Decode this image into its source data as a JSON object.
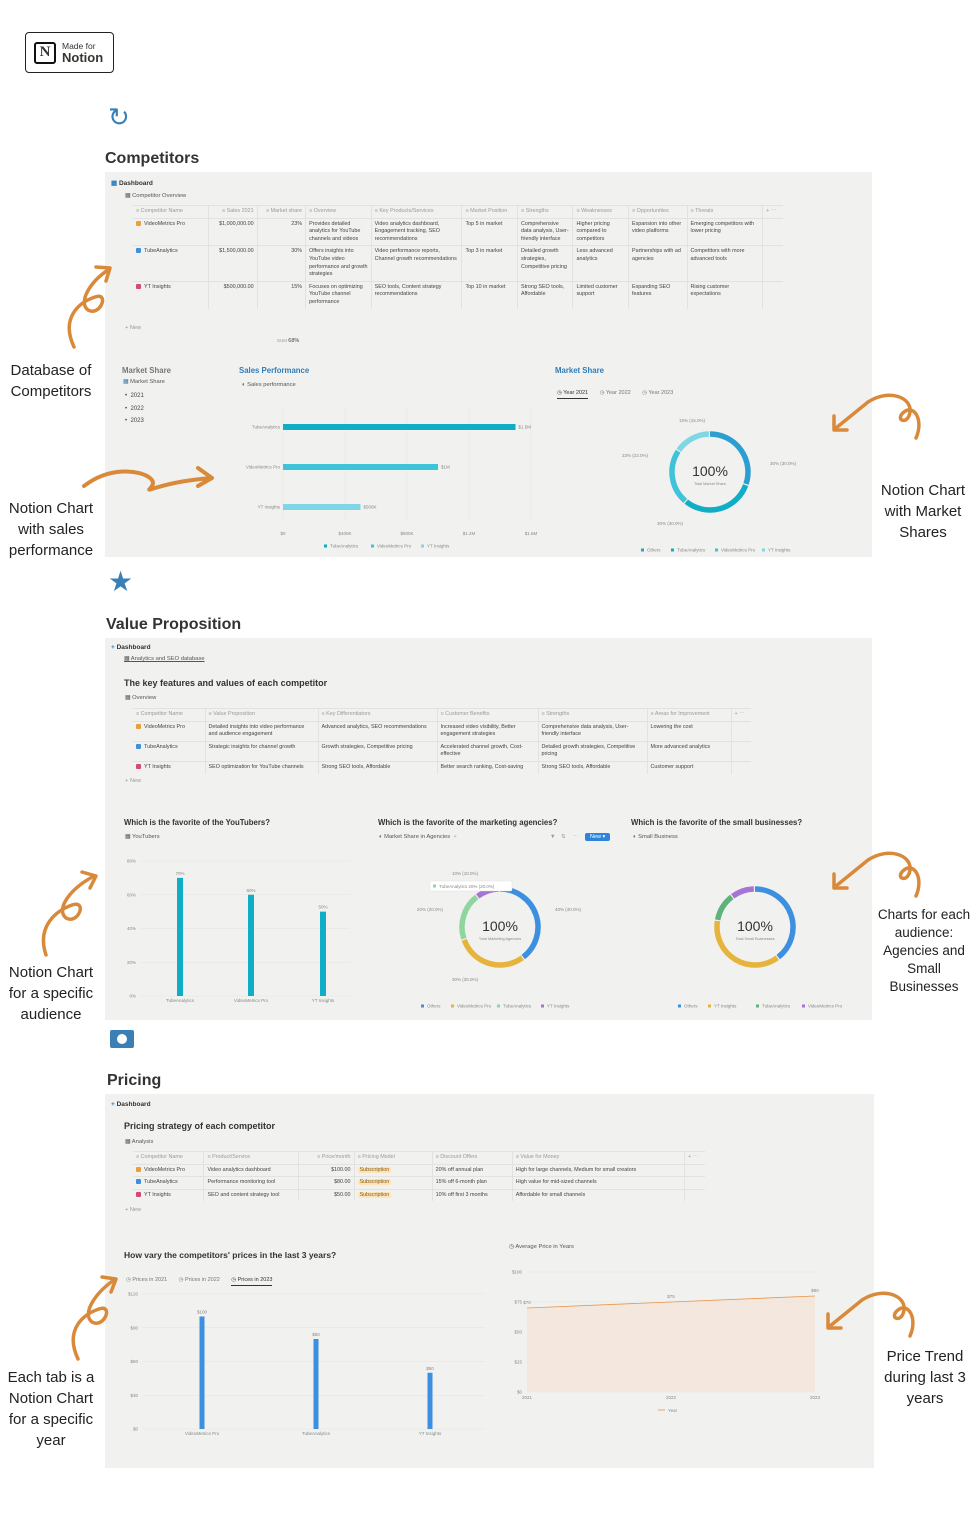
{
  "badge": {
    "small": "Made for",
    "big": "Notion"
  },
  "s1": {
    "title": "Competitors",
    "dashboard": "Dashboard",
    "db_title": "Competitor Overview",
    "cols": [
      "Competitor Name",
      "Sales 2021",
      "Market share",
      "Overview",
      "Key Products/Services",
      "Market Position",
      "Strengths",
      "Weaknesses",
      "Opportunities",
      "Threats"
    ],
    "rows": [
      [
        "VideoMetrics Pro",
        "$1,000,000.00",
        "23%",
        "Provides detailed analytics for YouTube channels and videos",
        "Video analytics dashboard, Engagement tracking, SEO recommendations",
        "Top 5 in market",
        "Comprehensive data analysis, User-friendly interface",
        "Higher pricing compared to competitors",
        "Expansion into other video platforms",
        "Emerging competitors with lower pricing"
      ],
      [
        "TubeAnalytics",
        "$1,500,000.00",
        "30%",
        "Offers insights into YouTube video performance and growth strategies",
        "Video performance reports, Channel growth recommendations",
        "Top 3 in market",
        "Detailed growth strategies, Competitive pricing",
        "Less advanced analytics",
        "Partnerships with ad agencies",
        "Competitors with more advanced tools"
      ],
      [
        "YT Insights",
        "$500,000.00",
        "15%",
        "Focuses on optimizing YouTube channel performance",
        "SEO tools, Content strategy recommendations",
        "Top 10 in market",
        "Strong SEO tools, Affordable",
        "Limited customer support",
        "Expanding SEO features",
        "Rising customer expectations"
      ]
    ],
    "new": "+ New",
    "sum_label": "SUM",
    "sum_value": "68%",
    "ms_group": "Market Share",
    "ms_db": "Market Share",
    "ms_items": [
      "2021",
      "2022",
      "2023"
    ],
    "sales_title": "Sales Performance",
    "sales_view": "Sales performance",
    "market_title": "Market Share",
    "market_tabs": [
      "Year 2021",
      "Year 2022",
      "Year 2023"
    ],
    "donut_center": "100%",
    "donut_sub": "Total Market Share",
    "donut_labels": [
      "15% (15.0%)",
      "23% (23.0%)",
      "30% (30.0%)",
      "30% (30.0%)"
    ]
  },
  "s2": {
    "title": "Value Proposition",
    "dashboard": "Dashboard",
    "db_link": "Analytics and SEO database",
    "subtitle": "The key features and values of each competitor",
    "view": "Overview",
    "cols": [
      "Competitor Name",
      "Value Proposition",
      "Key Differentiators",
      "Customer Benefits",
      "Strengths",
      "Areas for Improvement"
    ],
    "rows": [
      [
        "VideoMetrics Pro",
        "Detailed insights into video performance and audience engagement",
        "Advanced analytics, SEO recommendations",
        "Increased video visibility, Better engagement strategies",
        "Comprehensive data analysis, User-friendly interface",
        "Lowering the cost"
      ],
      [
        "TubeAnalytics",
        "Strategic insights for channel growth",
        "Growth strategies, Competitive pricing",
        "Accelerated channel growth, Cost-effective",
        "Detailed growth strategies, Competitive pricing",
        "More advanced analytics"
      ],
      [
        "YT Insights",
        "SEO optimization for YouTube channels",
        "Strong SEO tools, Affordable",
        "Better search ranking, Cost-saving",
        "Strong SEO tools, Affordable",
        "Customer support"
      ]
    ],
    "new": "+ New",
    "q1": "Which is the favorite of the YouTubers?",
    "q1_view": "YouTubers",
    "q2": "Which is the favorite of the marketing agencies?",
    "q2_view": "Market Share in Agencies",
    "new_btn": "New",
    "q3": "Which is the favorite of the small businesses?",
    "q3_view": "Small Business",
    "d2_center": "100%",
    "d2_sub": "Total Marketing Agencies",
    "d2_tooltip": "TubeAnalytics   20% (20.0%)",
    "d2_labels": [
      "10% (10.0%)",
      "20% (20.0%)",
      "40% (40.0%)",
      "30% (30.0%)"
    ],
    "d3_center": "100%",
    "d3_sub": "Total Small Businesses"
  },
  "s3": {
    "title": "Pricing",
    "dashboard": "Dashboard",
    "subtitle": "Pricing strategy of each competitor",
    "view": "Analysis",
    "cols": [
      "Competitor Name",
      "Product/Service",
      "Price/month",
      "Pricing Model",
      "Discount Offers",
      "Value for Money"
    ],
    "rows": [
      [
        "VideoMetrics Pro",
        "Video analytics dashboard",
        "$100.00",
        "Subscription",
        "20% off annual plan",
        "High for large channels, Medium for small creators"
      ],
      [
        "TubeAnalytics",
        "Performance monitoring tool",
        "$80.00",
        "Subscription",
        "15% off 6-month plan",
        "High value for mid-sized channels"
      ],
      [
        "YT Insights",
        "SEO and content strategy tool",
        "$50.00",
        "Subscription",
        "10% off first 3 months",
        "Affordable for small channels"
      ]
    ],
    "new": "+ New",
    "q": "How vary the competitors' prices in the last 3 years?",
    "tabs": [
      "Prices in 2021",
      "Prices in 2022",
      "Prices in 2023"
    ],
    "avg_view": "Average Price in Years"
  },
  "annotations": {
    "a1": "Database of Competitors",
    "a2": "Notion Chart with sales performance",
    "a3": "Notion Chart with Market Shares",
    "a4": "Notion Chart for a specific audience",
    "a5": "Charts for each audience: Agencies and Small Businesses",
    "a6": "Each tab is a Notion Chart for a specific year",
    "a7": "Price Trend during last 3 years"
  },
  "chart_data": [
    {
      "type": "bar",
      "orientation": "horizontal",
      "title": "Sales Performance",
      "categories": [
        "TubeAnalytics",
        "VideoMetrics Pro",
        "YT Insights"
      ],
      "values": [
        1500000,
        1000000,
        500000
      ],
      "data_labels": [
        "$1.5M",
        "$1M",
        "$500K"
      ],
      "x_ticks": [
        "$0",
        "$400K",
        "$800K",
        "$1.2M",
        "$1.6M"
      ],
      "xlim": [
        0,
        1600000
      ],
      "legend": [
        "TubeAnalytics",
        "VideoMetrics Pro",
        "YT Insights"
      ],
      "colors": [
        "#10aec6",
        "#3fc3d8",
        "#7fd6e4"
      ]
    },
    {
      "type": "pie",
      "title": "Market Share",
      "labels": [
        "Others",
        "TubeAnalytics",
        "VideoMetrics Pro",
        "YT Insights"
      ],
      "values": [
        30,
        30,
        23,
        15
      ],
      "legend": [
        "Others",
        "TubeAnalytics",
        "VideoMetrics Pro",
        "YT Insights"
      ],
      "colors": [
        "#2a9fd0",
        "#10aec6",
        "#3fc3d8",
        "#7fd6e4"
      ]
    },
    {
      "type": "bar",
      "title": "Which is the favorite of the YouTubers?",
      "categories": [
        "TubeAnalytics",
        "VideoMetrics Pro",
        "YT Insights"
      ],
      "values": [
        70,
        60,
        50
      ],
      "data_labels": [
        "70%",
        "60%",
        "50%"
      ],
      "y_ticks": [
        "0%",
        "20%",
        "40%",
        "60%",
        "80%"
      ],
      "ylim": [
        0,
        80
      ],
      "colors": [
        "#10aec6"
      ]
    },
    {
      "type": "pie",
      "title": "Which is the favorite of the marketing agencies?",
      "labels": [
        "Others",
        "VideoMetrics Pro",
        "TubeAnalytics",
        "YT Insights"
      ],
      "values": [
        40,
        30,
        20,
        10
      ],
      "legend": [
        "Others",
        "VideoMetrics Pro",
        "TubeAnalytics",
        "YT Insights"
      ],
      "colors": [
        "#3d8fe0",
        "#e6b43c",
        "#8fd69e",
        "#a674d6"
      ]
    },
    {
      "type": "pie",
      "title": "Which is the favorite of the small businesses?",
      "labels": [
        "Others",
        "YT Insights",
        "TubeAnalytics",
        "VideoMetrics Pro"
      ],
      "values": [
        40,
        38,
        12,
        10
      ],
      "legend": [
        "Others",
        "YT Insights",
        "TubeAnalytics",
        "VideoMetrics Pro"
      ],
      "colors": [
        "#3d8fe0",
        "#e6b43c",
        "#5fb37a",
        "#a674d6"
      ]
    },
    {
      "type": "bar",
      "title": "How vary the competitors' prices in the last 3 years?",
      "categories": [
        "VideoMetrics Pro",
        "TubeAnalytics",
        "YT Insights"
      ],
      "values": [
        100,
        80,
        50
      ],
      "data_labels": [
        "$100",
        "$80",
        "$50"
      ],
      "y_ticks": [
        "$0",
        "$30",
        "$60",
        "$90",
        "$120"
      ],
      "ylim": [
        0,
        120
      ],
      "colors": [
        "#3d8fe0"
      ]
    },
    {
      "type": "area",
      "title": "Average Price in Years",
      "x": [
        "2021",
        "2022",
        "2023"
      ],
      "values": [
        70,
        75,
        80
      ],
      "data_labels": [
        "$70",
        "$75",
        "$80"
      ],
      "y_ticks": [
        "$0",
        "$25",
        "$50",
        "$75",
        "$100"
      ],
      "ylim": [
        0,
        100
      ],
      "legend": [
        "Year"
      ],
      "colors": [
        "#e8944a"
      ]
    }
  ]
}
